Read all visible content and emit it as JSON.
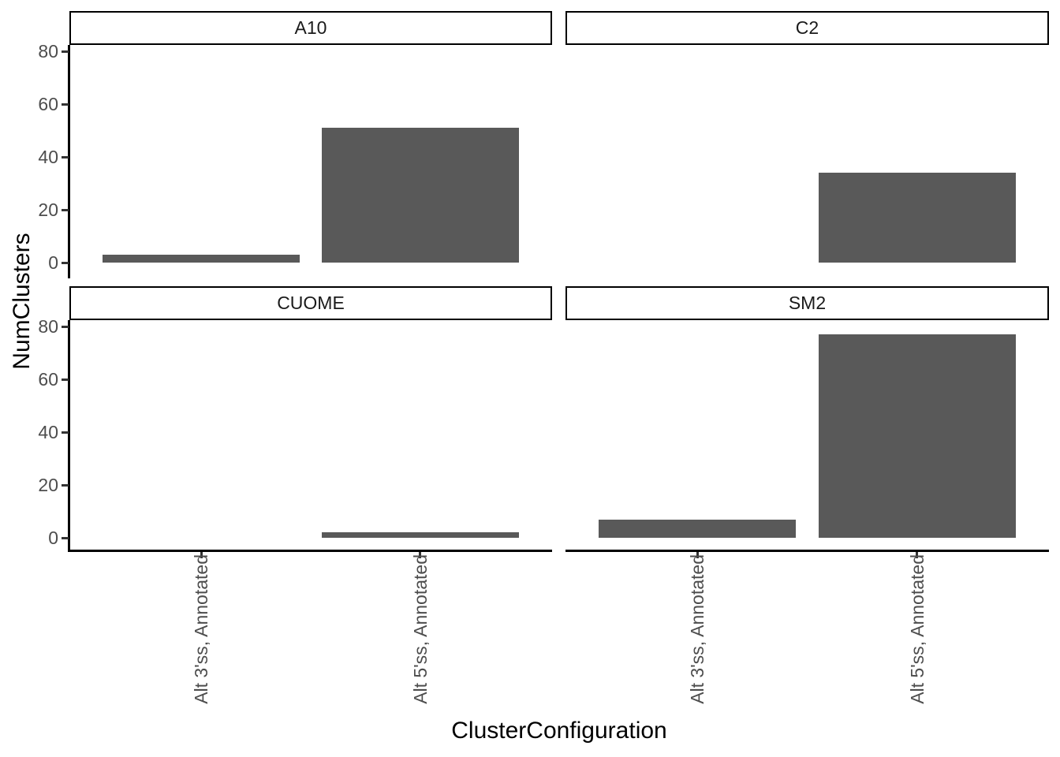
{
  "chart_data": {
    "type": "bar",
    "title": "",
    "xlabel": "ClusterConfiguration",
    "ylabel": "NumClusters",
    "categories": [
      "Alt 3'ss, Annotated",
      "Alt 5'ss, Annotated"
    ],
    "facets": [
      {
        "label": "A10",
        "values": [
          3,
          51
        ]
      },
      {
        "label": "C2",
        "values": [
          0,
          34
        ]
      },
      {
        "label": "CUOME",
        "values": [
          0,
          2
        ]
      },
      {
        "label": "SM2",
        "values": [
          7,
          77
        ]
      }
    ],
    "y_ticks": [
      0,
      20,
      40,
      60,
      80
    ],
    "ylim": [
      0,
      80
    ],
    "legend": "none",
    "grid": false,
    "bar_color": "#595959",
    "axis_text_color": "#4D4D4D",
    "axis_line_color": "#000000",
    "strip_border_color": "#000000",
    "strip_background": "#ffffff"
  }
}
